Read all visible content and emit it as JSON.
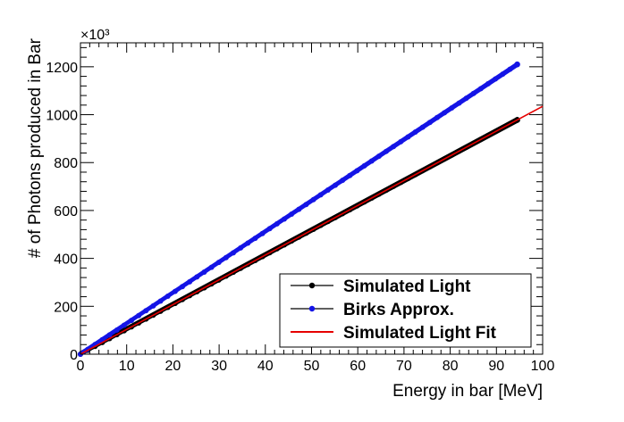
{
  "chart_data": {
    "type": "scatter",
    "title": "",
    "xlabel": "Energy in bar [MeV]",
    "ylabel": "# of Photons produced in Bar",
    "y_multiplier_label": "×10³",
    "xlim": [
      0,
      100
    ],
    "ylim": [
      0,
      1300
    ],
    "x_ticks": [
      0,
      10,
      20,
      30,
      40,
      50,
      60,
      70,
      80,
      90,
      100
    ],
    "y_ticks": [
      0,
      200,
      400,
      600,
      800,
      1000,
      1200
    ],
    "x_tick_labels": [
      "0",
      "10",
      "20",
      "30",
      "40",
      "50",
      "60",
      "70",
      "80",
      "90",
      "100"
    ],
    "y_tick_labels": [
      "0",
      "200",
      "400",
      "600",
      "800",
      "1000",
      "1200"
    ],
    "grid": false,
    "legend_position": "bottom-right",
    "series": [
      {
        "name": "Simulated Light",
        "kind": "markers-band",
        "color": "#000000",
        "x_range": [
          0,
          94.5
        ],
        "slope": 10.35,
        "band_halfwidth": 5,
        "end_point": [
          94.5,
          978
        ]
      },
      {
        "name": "Birks Approx.",
        "kind": "markers-band",
        "color": "#1414e6",
        "x_range": [
          0,
          94.5
        ],
        "slope": 12.8,
        "band_halfwidth": 3,
        "end_point": [
          94.5,
          1210
        ]
      },
      {
        "name": "Simulated Light Fit",
        "kind": "line",
        "color": "#e60000",
        "x_range": [
          0,
          100
        ],
        "slope": 10.35,
        "intercept": 0
      }
    ]
  }
}
